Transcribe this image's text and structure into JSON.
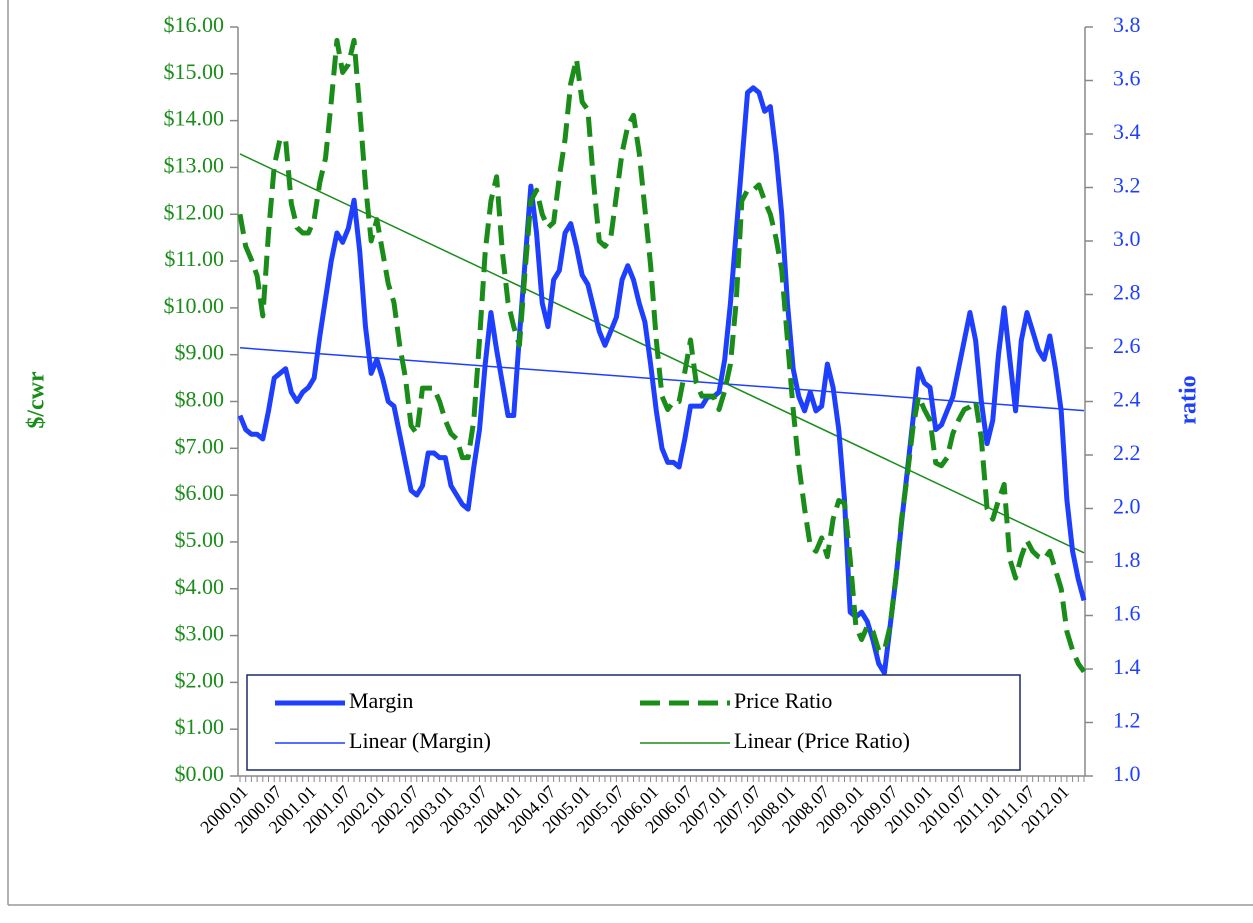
{
  "chart_data": {
    "type": "line",
    "y_label": "$/cwr",
    "y2_label": "ratio",
    "y_color": "#1a8c1a",
    "y2_color": "#1f3fff",
    "legend": "lower left",
    "ylim": [
      0,
      16
    ],
    "yticks": [
      {
        "value": 0,
        "label": "$0.00"
      },
      {
        "value": 1,
        "label": "$1.00"
      },
      {
        "value": 2,
        "label": "$2.00"
      },
      {
        "value": 3,
        "label": "$3.00"
      },
      {
        "value": 4,
        "label": "$4.00"
      },
      {
        "value": 5,
        "label": "$5.00"
      },
      {
        "value": 6,
        "label": "$6.00"
      },
      {
        "value": 7,
        "label": "$7.00"
      },
      {
        "value": 8,
        "label": "$8.00"
      },
      {
        "value": 9,
        "label": "$9.00"
      },
      {
        "value": 10,
        "label": "$10.00"
      },
      {
        "value": 11,
        "label": "$11.00"
      },
      {
        "value": 12,
        "label": "$12.00"
      },
      {
        "value": 13,
        "label": "$13.00"
      },
      {
        "value": 14,
        "label": "$14.00"
      },
      {
        "value": 15,
        "label": "$15.00"
      },
      {
        "value": 16,
        "label": "$16.00"
      }
    ],
    "y2lim": [
      1,
      3.8
    ],
    "y2ticks": [
      {
        "value": 1,
        "label": "1.0"
      },
      1.2,
      1.4,
      1.6,
      1.8,
      {
        "value": 2,
        "label": "2.0"
      },
      2.2,
      2.4,
      2.6,
      2.8,
      {
        "value": 3,
        "label": "3.0"
      },
      3.2,
      3.4,
      3.6,
      3.8
    ],
    "categories": [
      "2000.01",
      null,
      null,
      null,
      null,
      null,
      "2000.07",
      null,
      null,
      null,
      null,
      null,
      "2001.01",
      null,
      null,
      null,
      null,
      null,
      "2001.07",
      null,
      null,
      null,
      null,
      null,
      "2002.01",
      null,
      null,
      null,
      null,
      null,
      "2002.07",
      null,
      null,
      null,
      null,
      null,
      "2003.01",
      null,
      null,
      null,
      null,
      null,
      "2003.07",
      null,
      null,
      null,
      null,
      null,
      "2004.01",
      null,
      null,
      null,
      null,
      null,
      "2004.07",
      null,
      null,
      null,
      null,
      null,
      "2005.01",
      null,
      null,
      null,
      null,
      null,
      "2005.07",
      null,
      null,
      null,
      null,
      null,
      "2006.01",
      null,
      null,
      null,
      null,
      null,
      "2006.07",
      null,
      null,
      null,
      null,
      null,
      "2007.01",
      null,
      null,
      null,
      null,
      null,
      "2007.07",
      null,
      null,
      null,
      null,
      null,
      "2008.01",
      null,
      null,
      null,
      null,
      null,
      "2008.07",
      null,
      null,
      null,
      null,
      null,
      "2009.01",
      null,
      null,
      null,
      null,
      null,
      "2009.07",
      null,
      null,
      null,
      null,
      null,
      "2010.01",
      null,
      null,
      null,
      null,
      null,
      "2010.07",
      null,
      null,
      null,
      null,
      null,
      "2011.01",
      null,
      null,
      null,
      null,
      null,
      "2011.07",
      null,
      null,
      null,
      null,
      null,
      "2012.01",
      null,
      null,
      null,
      null
    ],
    "series": [
      {
        "name": "Margin",
        "color": "#1f3fff",
        "axis": "y",
        "style": "solid",
        "trendline": {
          "name": "Linear (Margin)",
          "type": "linear",
          "color": "#1f3fff"
        },
        "values": [
          7.7,
          7.4,
          7.3,
          7.3,
          7.2,
          7.8,
          8.5,
          8.6,
          8.7,
          8.2,
          8.0,
          8.2,
          8.3,
          8.5,
          9.4,
          10.2,
          11.0,
          11.6,
          11.4,
          11.7,
          12.3,
          11.2,
          9.6,
          8.6,
          8.9,
          8.5,
          8.0,
          7.9,
          7.3,
          6.7,
          6.1,
          6.0,
          6.2,
          6.9,
          6.9,
          6.8,
          6.8,
          6.2,
          6.0,
          5.8,
          5.7,
          6.6,
          7.4,
          8.8,
          9.9,
          9.1,
          8.4,
          7.7,
          7.7,
          9.4,
          11.0,
          12.6,
          11.6,
          10.1,
          9.6,
          10.6,
          10.8,
          11.6,
          11.8,
          11.3,
          10.7,
          10.5,
          10.0,
          9.5,
          9.2,
          9.5,
          9.8,
          10.6,
          10.9,
          10.6,
          10.1,
          9.7,
          8.8,
          7.8,
          7.0,
          6.7,
          6.7,
          6.6,
          7.2,
          7.9,
          7.9,
          7.9,
          8.1,
          8.1,
          8.2,
          8.9,
          10.1,
          11.6,
          13.1,
          14.6,
          14.7,
          14.6,
          14.2,
          14.3,
          13.3,
          12.0,
          10.1,
          8.7,
          8.1,
          7.8,
          8.2,
          7.8,
          7.9,
          8.8,
          8.3,
          7.4,
          5.9,
          3.5,
          3.4,
          3.5,
          3.3,
          2.9,
          2.4,
          2.2,
          3.2,
          4.2,
          5.4,
          6.5,
          7.6,
          8.7,
          8.4,
          8.3,
          7.4,
          7.5,
          7.8,
          8.1,
          8.7,
          9.3,
          9.9,
          9.3,
          8.0,
          7.1,
          7.6,
          9.0,
          10.0,
          8.9,
          7.8,
          9.3,
          9.9,
          9.5,
          9.1,
          8.9,
          9.4,
          8.7,
          7.8,
          5.9,
          4.8,
          4.2,
          3.75
        ]
      },
      {
        "name": "Price Ratio",
        "color": "#1a8c1a",
        "axis": "y2",
        "style": "dashed",
        "trendline": {
          "name": "Linear (Price Ratio)",
          "type": "linear",
          "color": "#1a8c1a"
        },
        "values": [
          3.1,
          2.98,
          2.93,
          2.87,
          2.72,
          3.03,
          3.28,
          3.38,
          3.38,
          3.14,
          3.05,
          3.03,
          3.03,
          3.08,
          3.22,
          3.31,
          3.52,
          3.75,
          3.63,
          3.66,
          3.75,
          3.49,
          3.21,
          3.0,
          3.08,
          2.96,
          2.84,
          2.77,
          2.61,
          2.49,
          2.31,
          2.28,
          2.45,
          2.45,
          2.45,
          2.4,
          2.33,
          2.28,
          2.26,
          2.19,
          2.19,
          2.33,
          2.63,
          2.96,
          3.15,
          3.24,
          2.96,
          2.77,
          2.68,
          2.61,
          2.89,
          3.15,
          3.19,
          3.1,
          3.05,
          3.07,
          3.24,
          3.38,
          3.59,
          3.68,
          3.52,
          3.49,
          3.22,
          3.0,
          2.98,
          3.01,
          3.17,
          3.33,
          3.43,
          3.47,
          3.33,
          3.12,
          2.91,
          2.63,
          2.42,
          2.37,
          2.4,
          2.4,
          2.51,
          2.63,
          2.47,
          2.42,
          2.42,
          2.42,
          2.37,
          2.44,
          2.54,
          2.77,
          3.15,
          3.19,
          3.19,
          3.21,
          3.15,
          3.1,
          3.01,
          2.89,
          2.63,
          2.37,
          2.16,
          2.0,
          1.86,
          1.84,
          1.89,
          1.82,
          1.96,
          2.03,
          2.02,
          1.81,
          1.56,
          1.51,
          1.56,
          1.54,
          1.47,
          1.47,
          1.56,
          1.74,
          1.96,
          2.12,
          2.3,
          2.42,
          2.37,
          2.33,
          2.17,
          2.16,
          2.19,
          2.28,
          2.33,
          2.37,
          2.38,
          2.4,
          2.26,
          2.0,
          1.96,
          2.03,
          2.09,
          1.81,
          1.74,
          1.82,
          1.88,
          1.84,
          1.82,
          1.81,
          1.84,
          1.77,
          1.7,
          1.54,
          1.47,
          1.42,
          1.39
        ]
      }
    ]
  }
}
